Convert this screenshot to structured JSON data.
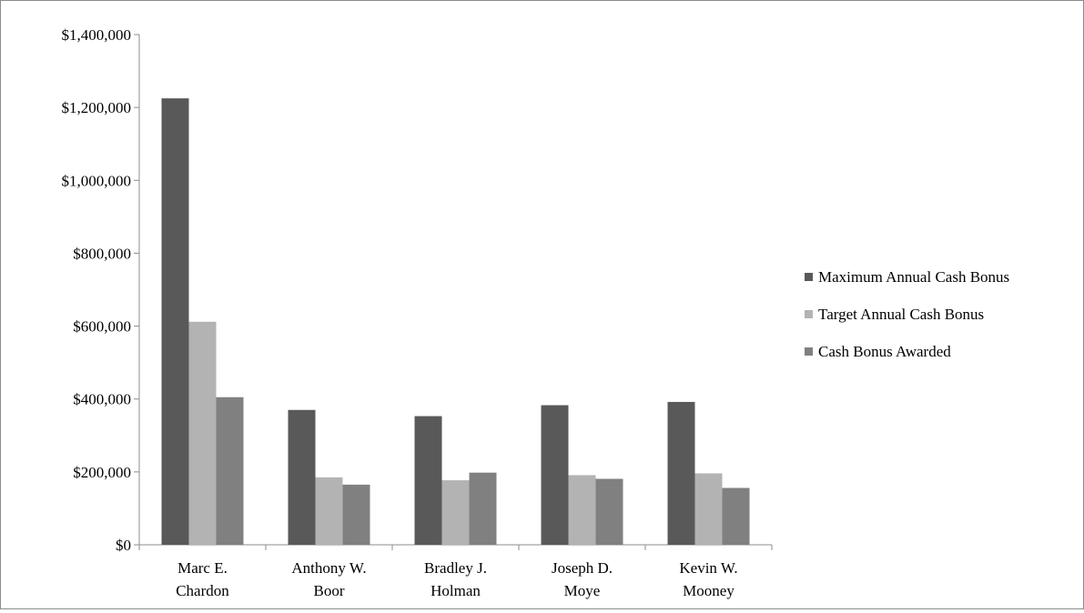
{
  "chart_data": {
    "type": "bar",
    "title": "",
    "xlabel": "",
    "ylabel": "",
    "ylim": [
      0,
      1400000
    ],
    "yticks": [
      0,
      200000,
      400000,
      600000,
      800000,
      1000000,
      1200000,
      1400000
    ],
    "ytick_labels": [
      "$0",
      "$200,000",
      "$400,000",
      "$600,000",
      "$800,000",
      "$1,000,000",
      "$1,200,000",
      "$1,400,000"
    ],
    "categories": [
      [
        "Marc E.",
        "Chardon"
      ],
      [
        "Anthony W.",
        "Boor"
      ],
      [
        "Bradley J.",
        "Holman"
      ],
      [
        "Joseph D.",
        "Moye"
      ],
      [
        "Kevin W.",
        "Mooney"
      ]
    ],
    "series": [
      {
        "name": "Maximum Annual Cash Bonus",
        "color": "#595959",
        "values": [
          1225000,
          370000,
          353000,
          383000,
          392000
        ]
      },
      {
        "name": "Target Annual Cash Bonus",
        "color": "#b3b3b3",
        "values": [
          612000,
          185000,
          177000,
          191000,
          196000
        ]
      },
      {
        "name": "Cash Bonus Awarded",
        "color": "#808080",
        "values": [
          405000,
          165000,
          198000,
          181000,
          156000
        ]
      }
    ],
    "grid": false,
    "legend_position": "right"
  }
}
